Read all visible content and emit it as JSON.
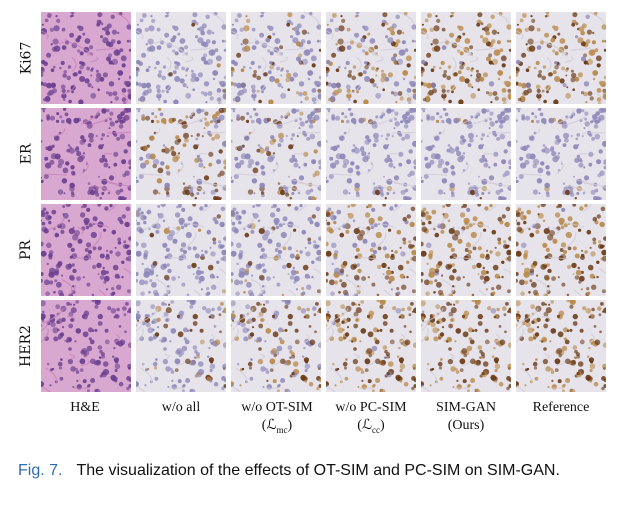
{
  "rows": [
    {
      "label": "Ki67"
    },
    {
      "label": "ER"
    },
    {
      "label": "PR"
    },
    {
      "label": "HER2"
    }
  ],
  "columns": [
    {
      "label": "H&E",
      "sub": "",
      "sub_idx": ""
    },
    {
      "label": "w/o all",
      "sub": "",
      "sub_idx": ""
    },
    {
      "label": "w/o OT-SIM",
      "sub": "(ℒ",
      "sub_idx": "mc",
      "sub_close": ")"
    },
    {
      "label": "w/o PC-SIM",
      "sub": "(ℒ",
      "sub_idx": "cc",
      "sub_close": ")"
    },
    {
      "label": "SIM-GAN",
      "sub": "(Ours)",
      "sub_idx": "",
      "sub_close": ""
    },
    {
      "label": "Reference",
      "sub": "",
      "sub_idx": ""
    }
  ],
  "caption": {
    "fig": "Fig. 7.",
    "text": "The visualization of the effects of OT-SIM and PC-SIM on SIM-GAN."
  },
  "palette": {
    "he_bg": "#d9a8d0",
    "he_cell": "#6b3f8f",
    "ihc_bg": "#e6e3ea",
    "ihc_hema": "#8c86b8",
    "dab_light": "#b8894a",
    "dab_dark": "#6a3a16"
  }
}
